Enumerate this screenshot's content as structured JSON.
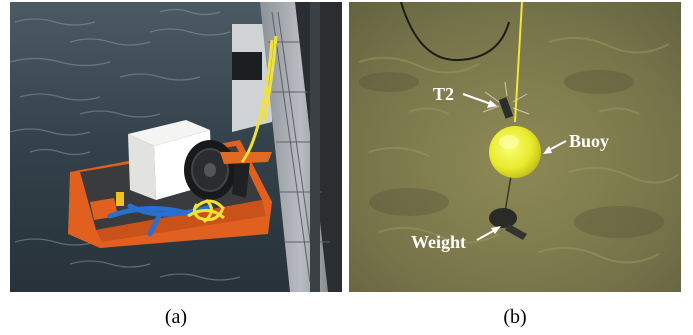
{
  "figure": {
    "panel_a": {
      "caption": "(a)",
      "scene": "inflatable-platform-with-box-and-reel-beside-pier"
    },
    "panel_b": {
      "caption": "(b)",
      "scene": "underwater-view-of-buoy-and-weight",
      "labels": {
        "t2": "T2",
        "buoy": "Buoy",
        "weight": "Weight"
      }
    },
    "colors": {
      "water": "#3d4d55",
      "raft_orange": "#e2601f",
      "raft_top": "#3a3b3d",
      "rope_yellow": "#f2e238",
      "strap_blue": "#2a6fd0",
      "buoy_yellow": "#e8ea2a",
      "seabed": "#7d7a48"
    }
  }
}
